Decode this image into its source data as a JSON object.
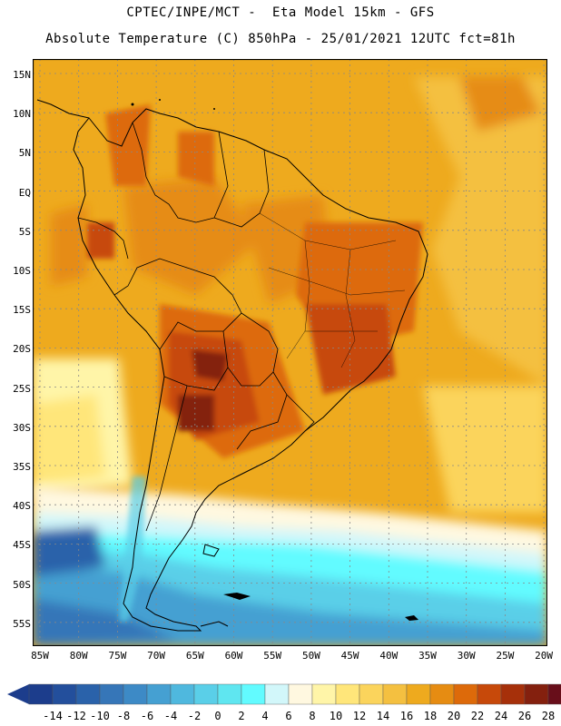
{
  "header": {
    "line1": "CPTEC/INPE/MCT -  Eta Model 15km - GFS",
    "line2": "Absolute Temperature (C) 850hPa - 25/01/2021 12UTC fct=81h"
  },
  "lat_labels": [
    "15N",
    "10N",
    "5N",
    "EQ",
    "5S",
    "10S",
    "15S",
    "20S",
    "25S",
    "30S",
    "35S",
    "40S",
    "45S",
    "50S",
    "55S"
  ],
  "lon_labels": [
    "85W",
    "80W",
    "75W",
    "70W",
    "65W",
    "60W",
    "55W",
    "50W",
    "45W",
    "40W",
    "35W",
    "30W",
    "25W",
    "20W"
  ],
  "colorbar": {
    "labels": [
      "-14",
      "-12",
      "-10",
      "-8",
      "-6",
      "-4",
      "-2",
      "0",
      "2",
      "4",
      "6",
      "8",
      "10",
      "12",
      "14",
      "16",
      "18",
      "20",
      "22",
      "24",
      "26",
      "28"
    ],
    "colors": [
      "#1c3d8c",
      "#234f9c",
      "#2a62aa",
      "#3676b8",
      "#3d8ac6",
      "#45a0d2",
      "#4fb8de",
      "#5acfe8",
      "#5fe6f0",
      "#62fbff",
      "#d2f7fa",
      "#fff8e0",
      "#fff5a8",
      "#ffe67a",
      "#fbd45c",
      "#f4c040",
      "#eeaa1e",
      "#e68c12",
      "#dd6a0a",
      "#c7490a",
      "#a6300a",
      "#84200e",
      "#680e1a"
    ]
  }
}
